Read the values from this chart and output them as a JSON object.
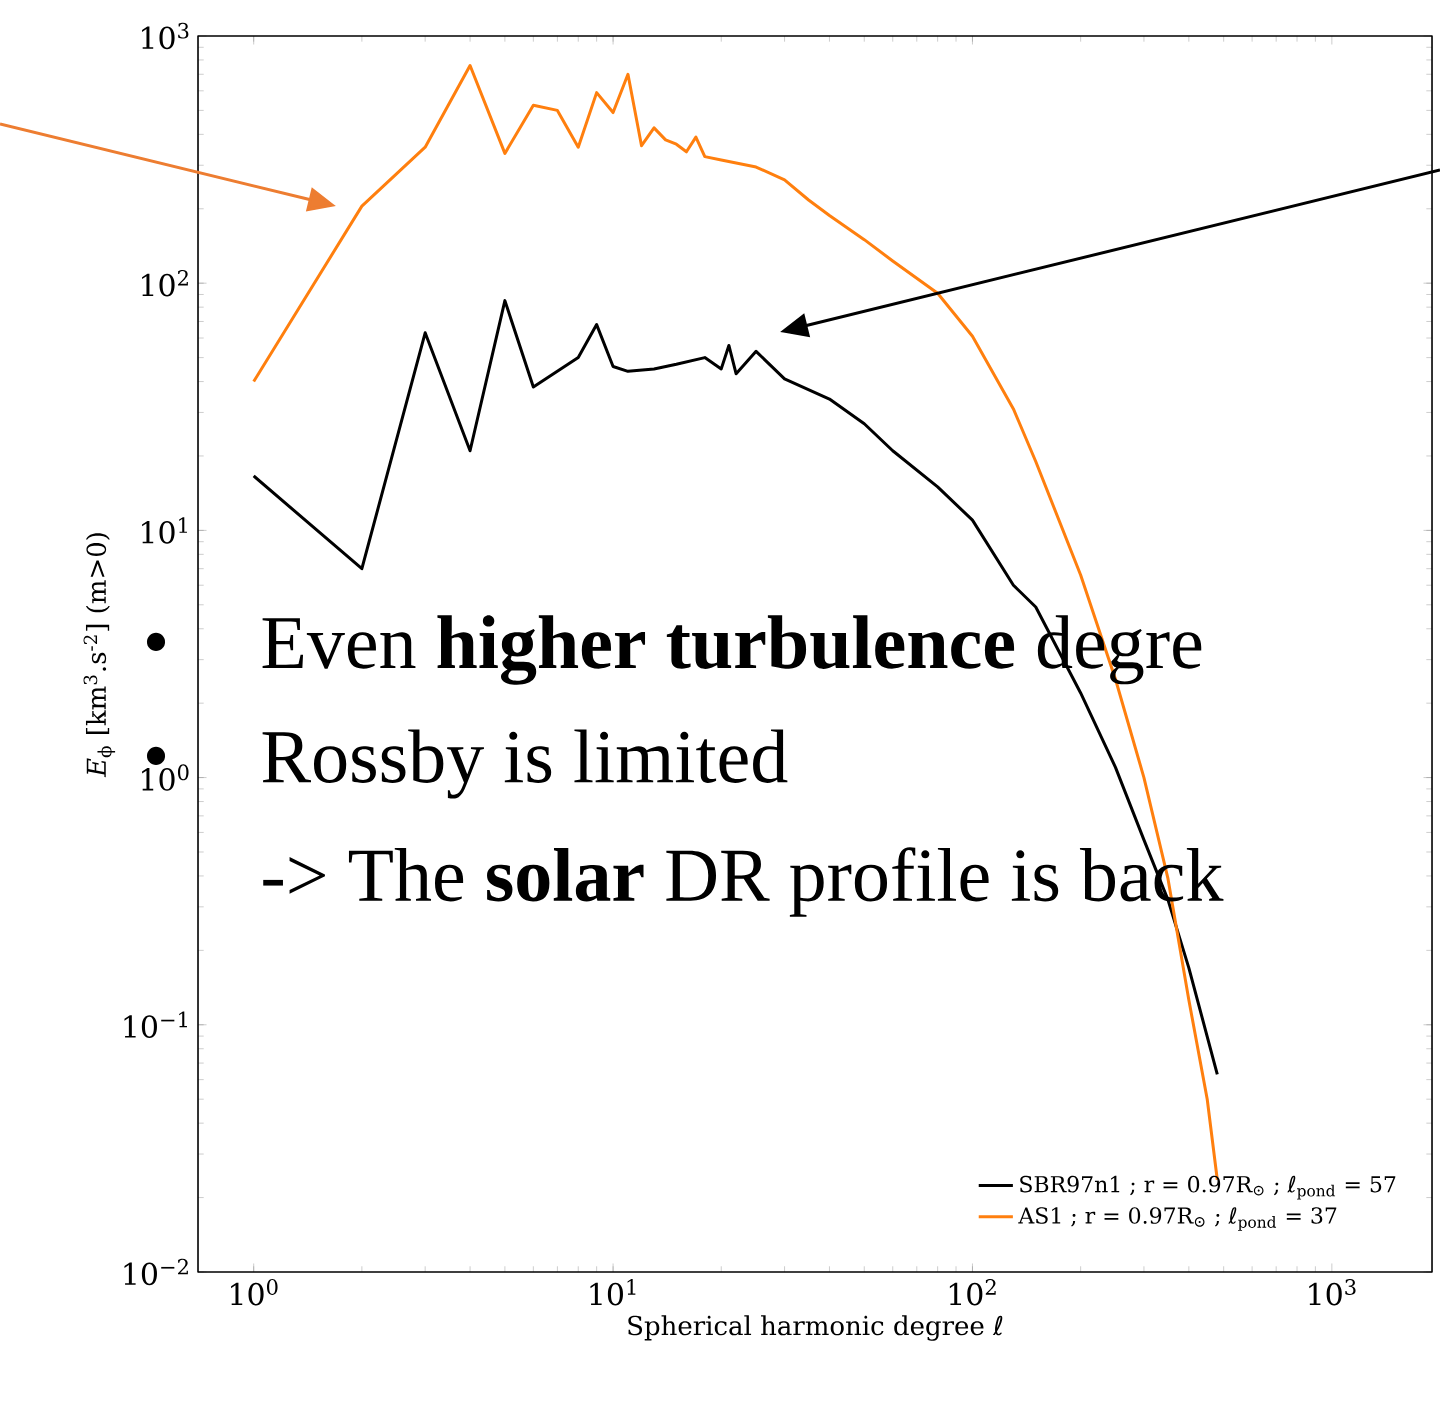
{
  "chart_data": {
    "type": "line",
    "xlabel": "Spherical harmonic degree ℓ",
    "ylabel": "*E*$_{ϕ}$ [km$^{3}$.s$^{-2}$] (m>0)",
    "log": "xy",
    "xlim": [
      0.7,
      1900
    ],
    "ylim": [
      0.01,
      1000
    ],
    "xticks": [
      {
        "value": 1,
        "label": "10$^{0}$"
      },
      {
        "value": 10,
        "label": "10$^{1}$"
      },
      {
        "value": 100,
        "label": "10$^{2}$"
      },
      {
        "value": 1000,
        "label": "10$^{3}$"
      }
    ],
    "yticks": [
      {
        "value": 0.01,
        "label": "10$^{−2}$"
      },
      {
        "value": 0.1,
        "label": "10$^{−1}$"
      },
      {
        "value": 1,
        "label": "10$^{0}$"
      },
      {
        "value": 10,
        "label": "10$^{1}$"
      },
      {
        "value": 100,
        "label": "10$^{2}$"
      },
      {
        "value": 1000,
        "label": "10$^{3}$"
      }
    ],
    "grid": false,
    "legend": "bottom right",
    "series": [
      {
        "name": "SBR97n1 ; r = 0.97R$_{⊙}$ ; ℓ$_{pond}$ = 57",
        "color": "#000000",
        "x": [
          1,
          2,
          3,
          4,
          5,
          6,
          8,
          9,
          10,
          11,
          13,
          15,
          18,
          20,
          21,
          22,
          25,
          30,
          40,
          50,
          60,
          80,
          100,
          130,
          150,
          200,
          250,
          300,
          350,
          400,
          480
        ],
        "values": [
          16.6,
          7.0,
          63,
          21,
          85,
          38,
          50,
          68,
          46,
          44,
          45,
          47,
          50,
          45,
          56,
          43,
          53,
          41,
          34,
          27,
          21,
          15,
          11,
          6.0,
          4.9,
          2.2,
          1.1,
          0.56,
          0.32,
          0.17,
          0.063
        ]
      },
      {
        "name": "AS1 ; r = 0.97R$_{⊙}$ ; ℓ$_{pond}$ = 37",
        "color": "#ff7f0e",
        "x": [
          1,
          2,
          3,
          4,
          5,
          6,
          7,
          8,
          9,
          10,
          11,
          12,
          13,
          14,
          15,
          16,
          17,
          18,
          20,
          25,
          30,
          35,
          40,
          50,
          60,
          80,
          100,
          130,
          150,
          200,
          250,
          300,
          350,
          400,
          450,
          480
        ],
        "values": [
          40,
          205,
          355,
          760,
          335,
          525,
          500,
          355,
          590,
          490,
          700,
          360,
          425,
          380,
          365,
          340,
          390,
          325,
          315,
          295,
          262,
          217,
          188,
          150,
          123,
          91,
          61,
          31,
          19,
          6.6,
          2.5,
          1.0,
          0.39,
          0.126,
          0.05,
          0.0236
        ]
      }
    ],
    "annotations": [
      "•",
      "Even **higher turbulence** degre",
      "•",
      "Rossby is limited",
      "-> The **solar** DR profile is back"
    ]
  }
}
